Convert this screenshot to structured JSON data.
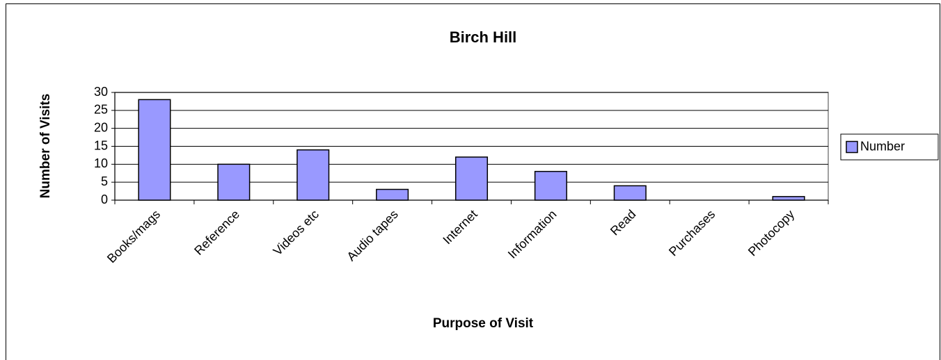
{
  "chart_data": {
    "type": "bar",
    "title": "Birch Hill",
    "x_label": "Purpose of Visit",
    "y_label": "Number of Visits",
    "categories": [
      "Books/mags",
      "Reference",
      "Videos etc",
      "Audio tapes",
      "Internet",
      "Information",
      "Read",
      "Purchases",
      "Photocopy"
    ],
    "series": [
      {
        "name": "Number",
        "color": "#9999ff",
        "values": [
          28,
          10,
          14,
          3,
          12,
          8,
          4,
          0,
          1
        ]
      }
    ],
    "ylim": [
      0,
      30
    ],
    "yticks": [
      0,
      5,
      10,
      15,
      20,
      25,
      30
    ],
    "grid": true,
    "legend": "right"
  }
}
